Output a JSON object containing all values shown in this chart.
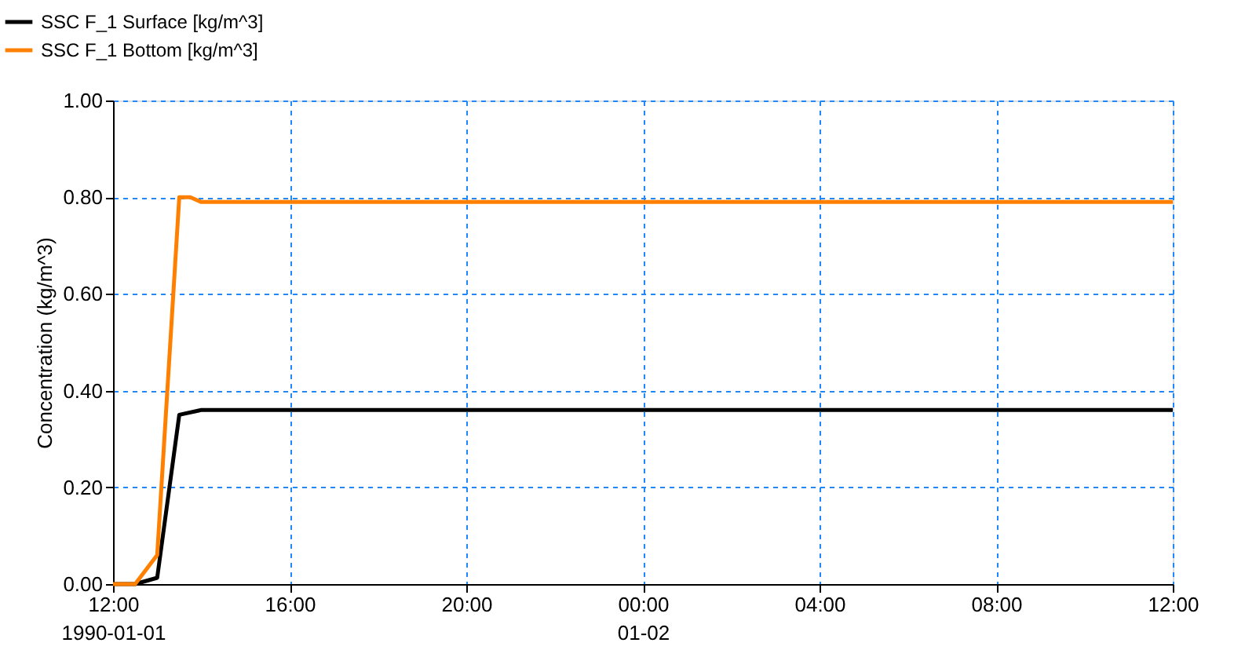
{
  "chart_data": {
    "type": "line",
    "ylabel": "Concentration (kg/m^3)",
    "xlim": [
      "1990-01-01T12:00",
      "1990-01-02T12:00"
    ],
    "xticks": [
      {
        "value": "1990-01-01T12:00",
        "label": "12:00\n1990-01-01"
      },
      {
        "value": "1990-01-01T16:00",
        "label": "16:00"
      },
      {
        "value": "1990-01-01T20:00",
        "label": "20:00"
      },
      {
        "value": "1990-01-02T00:00",
        "label": "00:00\n01-02"
      },
      {
        "value": "1990-01-02T04:00",
        "label": "04:00"
      },
      {
        "value": "1990-01-02T08:00",
        "label": "08:00"
      },
      {
        "value": "1990-01-02T12:00",
        "label": "12:00"
      }
    ],
    "ylim": [
      0,
      1
    ],
    "yticks": [
      {
        "value": 0,
        "label": "0.00"
      },
      {
        "value": 0.2,
        "label": "0.20"
      },
      {
        "value": 0.4,
        "label": "0.40"
      },
      {
        "value": 0.6,
        "label": "0.60"
      },
      {
        "value": 0.8,
        "label": "0.80"
      },
      {
        "value": 1,
        "label": "1.00"
      }
    ],
    "grid": true,
    "legend": "top left",
    "marker": "none",
    "line_style": "solid",
    "series": [
      {
        "name": "SSC F_1 Surface [kg/m^3]",
        "color": "#000000",
        "x": [
          "1990-01-01T12:00",
          "1990-01-01T12:30",
          "1990-01-01T13:00",
          "1990-01-01T13:30",
          "1990-01-01T14:00",
          "1990-01-01T14:30",
          "1990-01-02T12:00"
        ],
        "values": [
          0,
          0,
          0.013,
          0.35,
          0.36,
          0.36,
          0.36
        ]
      },
      {
        "name": "SSC F_1 Bottom   [kg/m^3]",
        "color": "#ff8000",
        "x": [
          "1990-01-01T12:00",
          "1990-01-01T12:30",
          "1990-01-01T13:00",
          "1990-01-01T13:30",
          "1990-01-01T13:45",
          "1990-01-01T14:00",
          "1990-01-02T12:00"
        ],
        "values": [
          0,
          0,
          0.06,
          0.8,
          0.8,
          0.79,
          0.79
        ]
      }
    ]
  }
}
